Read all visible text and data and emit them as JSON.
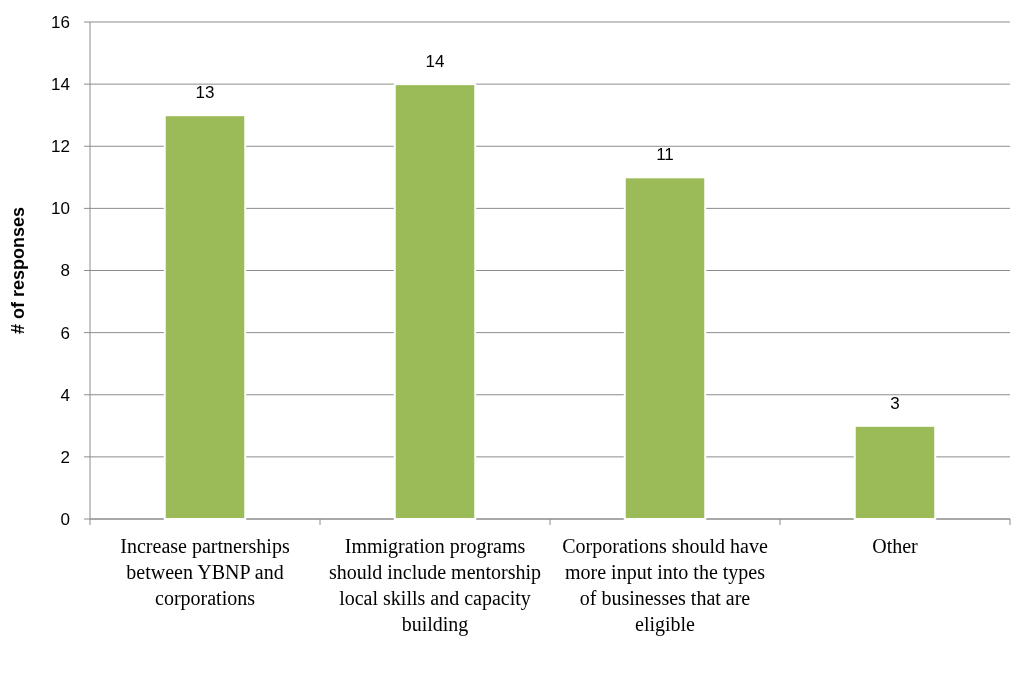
{
  "chart_data": {
    "type": "bar",
    "ylabel": "# of responses",
    "categories": [
      "Increase partnerships between YBNP and corporations",
      "Immigration programs should include mentorship local skills and capacity building",
      "Corporations should have more input into the types of businesses that are eligible",
      "Other"
    ],
    "values": [
      13,
      14,
      11,
      3
    ],
    "color": "#9bbb59",
    "ylim": [
      0,
      16
    ],
    "yticks": [
      0,
      2,
      4,
      6,
      8,
      10,
      12,
      14,
      16
    ],
    "grid": "y",
    "data_labels": true
  }
}
